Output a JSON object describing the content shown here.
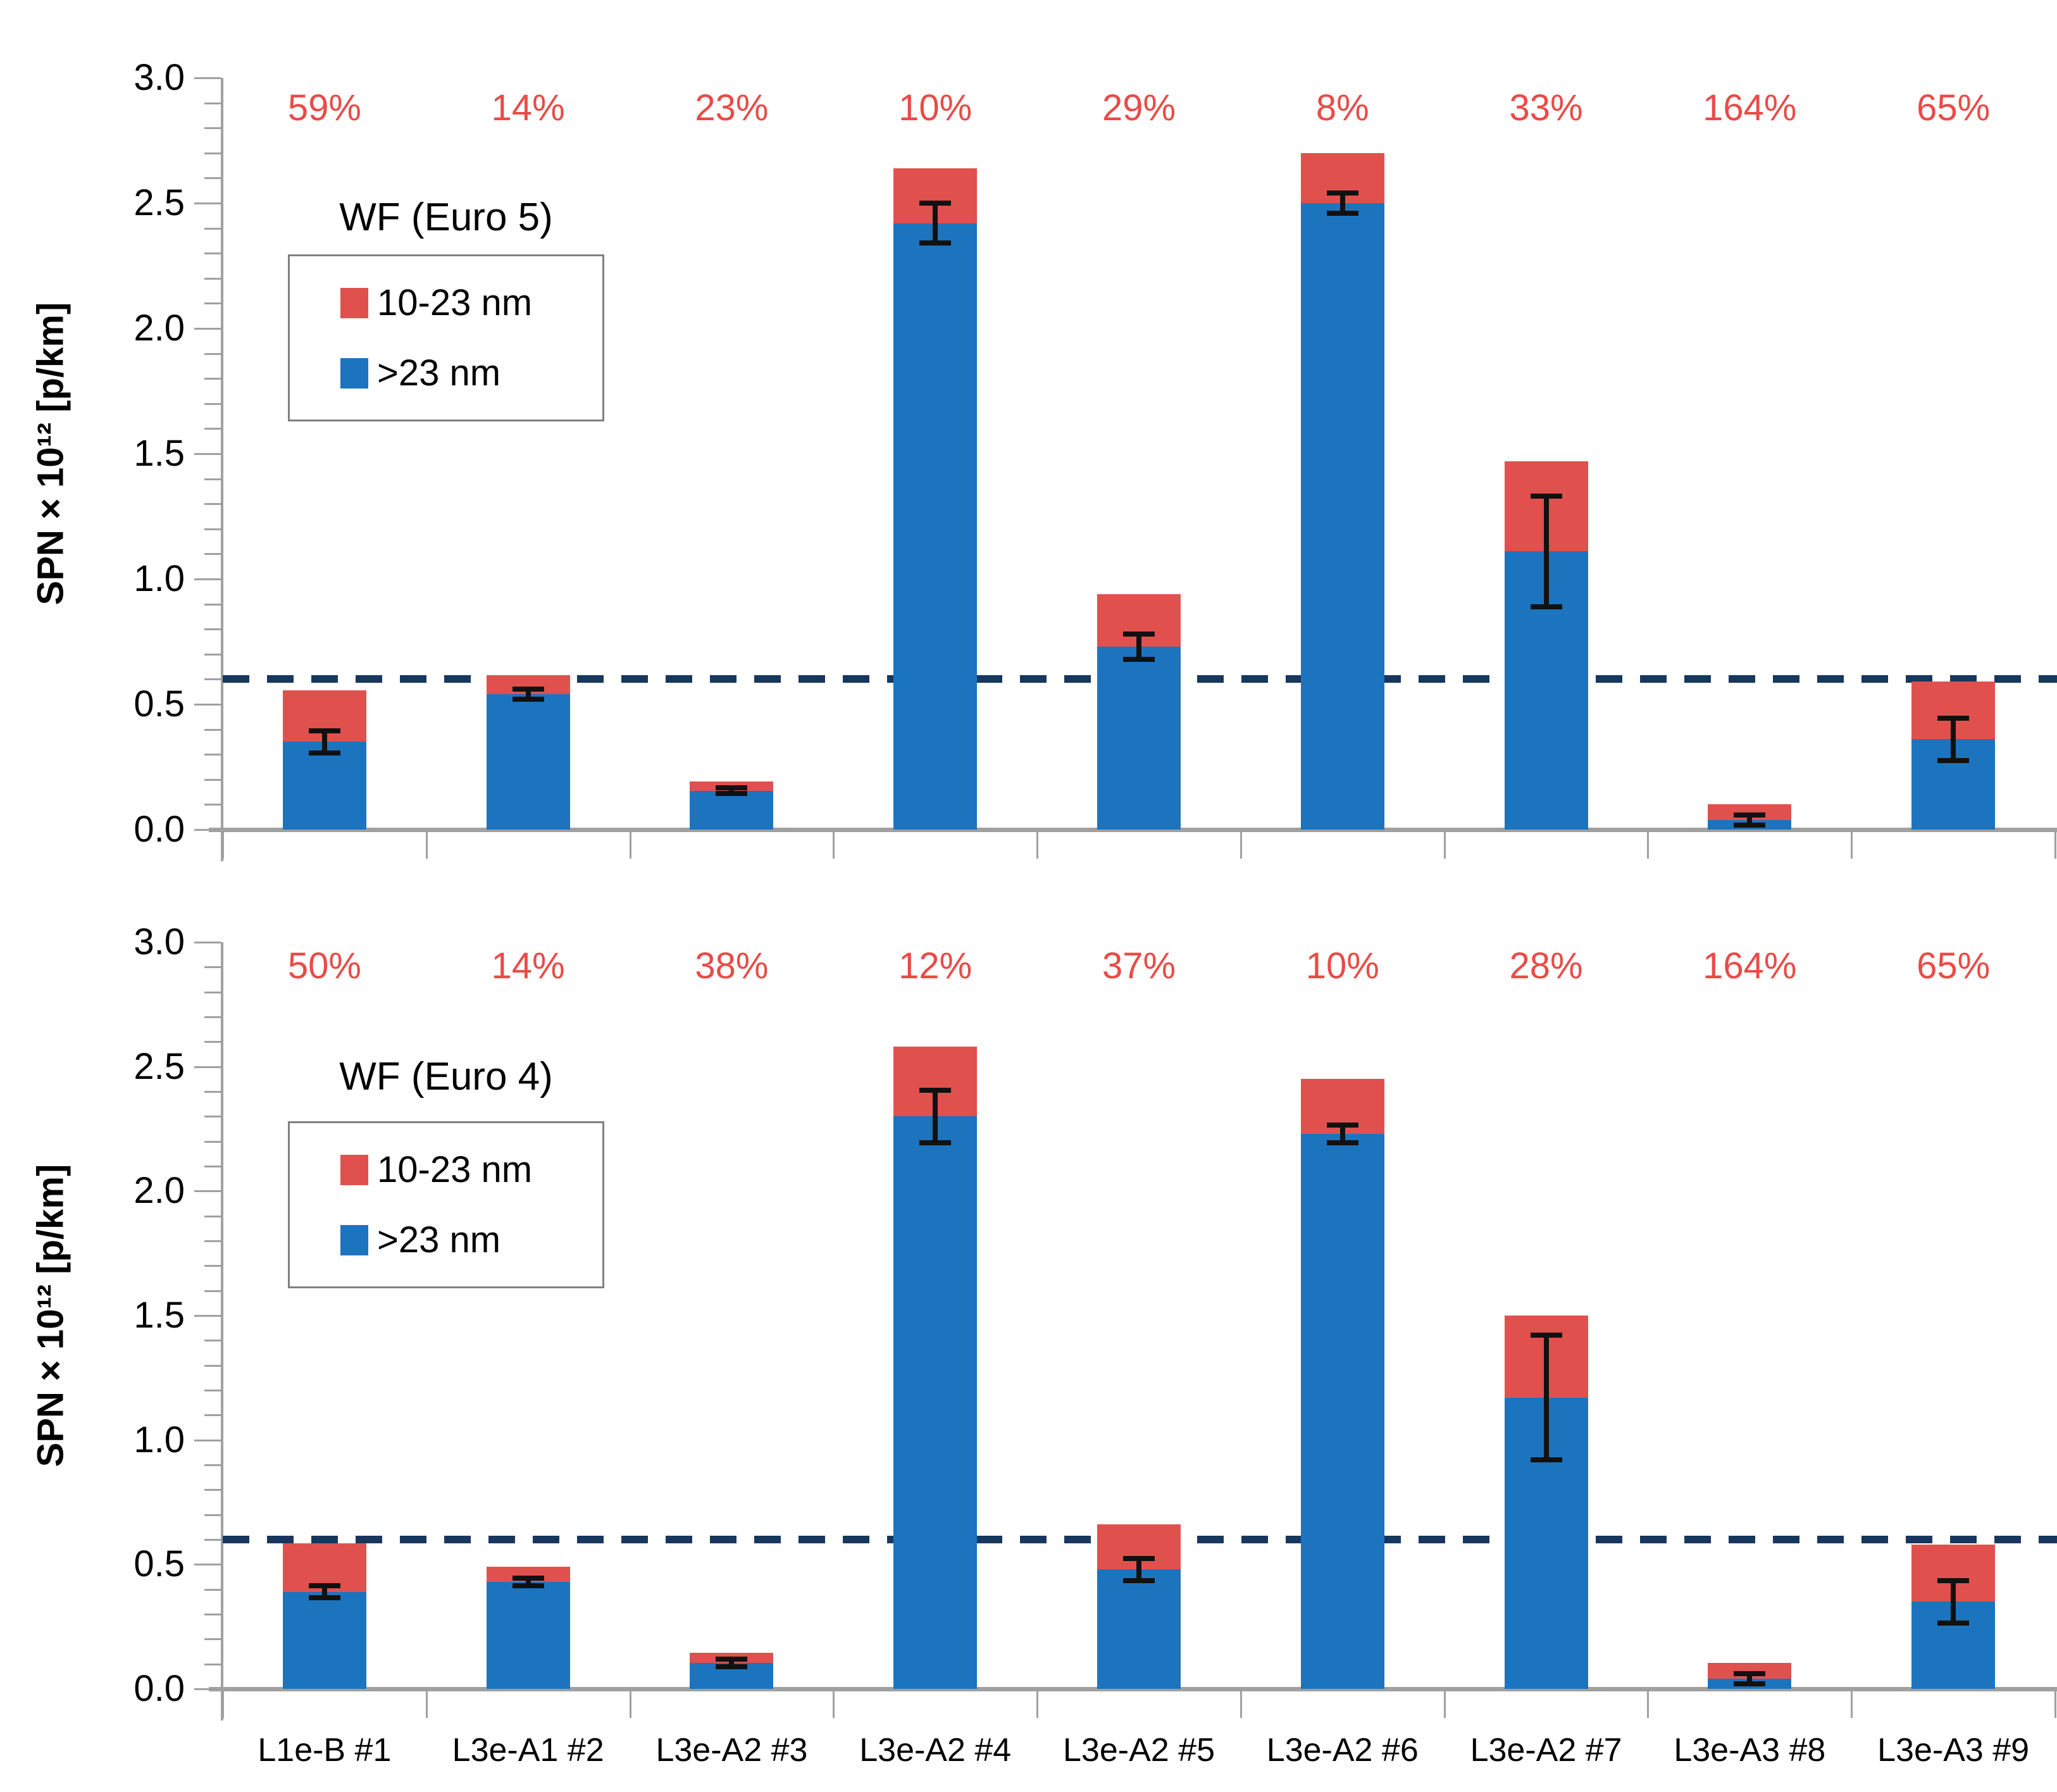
{
  "figure_ylabel": "SPN × 10¹² [p/km]",
  "colors": {
    "blue_series": "#1C74BE",
    "red_series": "#E0514E",
    "percent_text": "#E94B47",
    "limit_line": "#17375E",
    "axis_gray": "#A0A0A0",
    "error_bar": "#111111"
  },
  "chart_data": [
    {
      "type": "bar",
      "stacked": true,
      "title": "WF (Euro 5)",
      "ylabel": "SPN × 10¹² [p/km]",
      "ylim": [
        0,
        3
      ],
      "yticks": [
        0.0,
        0.5,
        1.0,
        1.5,
        2.0,
        2.5,
        3.0
      ],
      "minor_tick_step": 0.1,
      "grid": false,
      "legend_position": "upper-left-inside",
      "categories": [
        "L1e-B #1",
        "L3e-A1 #2",
        "L3e-A2 #3",
        "L3e-A2 #4",
        "L3e-A2 #5",
        "L3e-A2 #6",
        "L3e-A2 #7",
        "L3e-A3 #8",
        "L3e-A3 #9"
      ],
      "series": [
        {
          "name": ">23 nm",
          "color": "#1C74BE",
          "values": [
            0.35,
            0.54,
            0.155,
            2.42,
            0.73,
            2.5,
            1.11,
            0.038,
            0.36
          ]
        },
        {
          "name": "10-23 nm",
          "color": "#E0514E",
          "values": [
            0.205,
            0.075,
            0.036,
            0.22,
            0.21,
            0.2,
            0.36,
            0.062,
            0.23
          ]
        }
      ],
      "error_bars": {
        "on_series": ">23 nm",
        "plus_minus": [
          0.045,
          0.02,
          0.012,
          0.08,
          0.05,
          0.04,
          0.22,
          0.02,
          0.085
        ]
      },
      "percent_labels": [
        "59%",
        "14%",
        "23%",
        "10%",
        "29%",
        "8%",
        "33%",
        "164%",
        "65%"
      ],
      "dashed_line": {
        "value": 0.6,
        "color": "#17375E",
        "style": "dashed"
      },
      "legend": [
        {
          "label": "10-23 nm",
          "color": "#E0514E"
        },
        {
          "label": ">23 nm",
          "color": "#1C74BE"
        }
      ]
    },
    {
      "type": "bar",
      "stacked": true,
      "title": "WF (Euro 4)",
      "ylabel": "SPN × 10¹² [p/km]",
      "ylim": [
        0,
        3
      ],
      "yticks": [
        0.0,
        0.5,
        1.0,
        1.5,
        2.0,
        2.5,
        3.0
      ],
      "minor_tick_step": 0.1,
      "grid": false,
      "legend_position": "upper-left-inside",
      "categories": [
        "L1e-B #1",
        "L3e-A1 #2",
        "L3e-A2 #3",
        "L3e-A2 #4",
        "L3e-A2 #5",
        "L3e-A2 #6",
        "L3e-A2 #7",
        "L3e-A3 #8",
        "L3e-A3 #9"
      ],
      "series": [
        {
          "name": ">23 nm",
          "color": "#1C74BE",
          "values": [
            0.39,
            0.43,
            0.105,
            2.3,
            0.48,
            2.23,
            1.17,
            0.04,
            0.35
          ]
        },
        {
          "name": "10-23 nm",
          "color": "#E0514E",
          "values": [
            0.195,
            0.06,
            0.04,
            0.28,
            0.18,
            0.22,
            0.33,
            0.065,
            0.23
          ]
        }
      ],
      "error_bars": {
        "on_series": ">23 nm",
        "plus_minus": [
          0.025,
          0.015,
          0.015,
          0.105,
          0.045,
          0.035,
          0.25,
          0.02,
          0.085
        ]
      },
      "percent_labels": [
        "50%",
        "14%",
        "38%",
        "12%",
        "37%",
        "10%",
        "28%",
        "164%",
        "65%"
      ],
      "dashed_line": {
        "value": 0.6,
        "color": "#17375E",
        "style": "dashed"
      },
      "legend": [
        {
          "label": "10-23 nm",
          "color": "#E0514E"
        },
        {
          "label": ">23 nm",
          "color": "#1C74BE"
        }
      ]
    }
  ]
}
